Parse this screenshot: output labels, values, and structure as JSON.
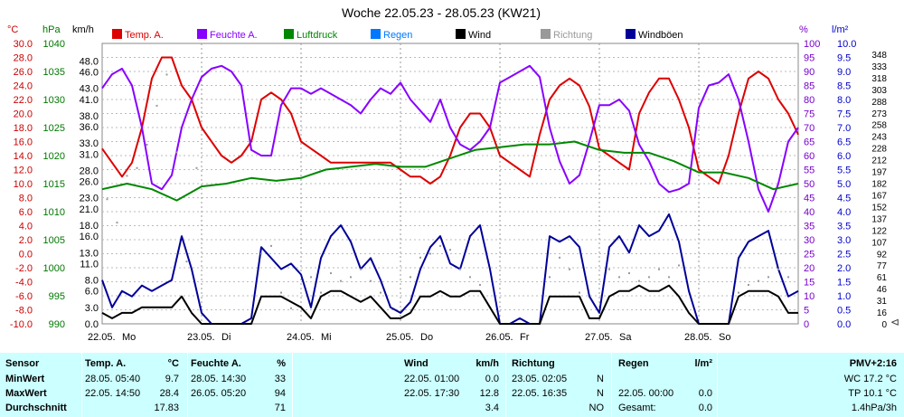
{
  "chart_data": {
    "type": "line",
    "title": "Woche 22.05.23 - 28.05.23 (KW21)",
    "axes": {
      "temp": {
        "unit": "°C",
        "range": [
          -10,
          30
        ],
        "ticks": [
          "30.0",
          "28.0",
          "26.0",
          "24.0",
          "22.0",
          "20.0",
          "18.0",
          "16.0",
          "14.0",
          "12.0",
          "10.0",
          "8.0",
          "6.0",
          "4.0",
          "2.0",
          "0.0",
          "-2.0",
          "-4.0",
          "-6.0",
          "-8.0",
          "-10.0"
        ],
        "color": "#cc0000"
      },
      "pressure": {
        "unit": "hPa",
        "range": [
          990,
          1040
        ],
        "ticks": [
          "1040",
          "1035",
          "1030",
          "1025",
          "1020",
          "1015",
          "1010",
          "1005",
          "1000",
          "995",
          "990"
        ],
        "color": "#007700"
      },
      "wind": {
        "unit": "km/h",
        "range": [
          0,
          51.2
        ],
        "ticks": [
          "48.0",
          "46.0",
          "43.0",
          "41.0",
          "38.0",
          "36.0",
          "33.0",
          "31.0",
          "28.0",
          "26.0",
          "23.0",
          "21.0",
          "18.0",
          "16.0",
          "13.0",
          "11.0",
          "8.0",
          "6.0",
          "3.0",
          "0.0"
        ]
      },
      "humidity": {
        "unit": "%",
        "range": [
          0,
          100
        ],
        "ticks": [
          "100",
          "95",
          "90",
          "85",
          "80",
          "75",
          "70",
          "65",
          "60",
          "55",
          "50",
          "45",
          "40",
          "35",
          "30",
          "25",
          "20",
          "15",
          "10",
          "5",
          "0"
        ],
        "color": "#7700cc"
      },
      "rain": {
        "unit": "l/m²",
        "range": [
          0,
          10
        ],
        "ticks": [
          "10.0",
          "9.5",
          "9.0",
          "8.5",
          "8.0",
          "7.5",
          "7.0",
          "6.5",
          "6.0",
          "5.5",
          "5.0",
          "4.5",
          "4.0",
          "3.5",
          "3.0",
          "2.5",
          "2.0",
          "1.5",
          "1.0",
          "0.5",
          "0.0"
        ],
        "color": "#0000cc"
      },
      "direction": {
        "unit": "°",
        "range": [
          0,
          360
        ],
        "ticks": [
          "348",
          "333",
          "318",
          "303",
          "288",
          "273",
          "258",
          "243",
          "228",
          "212",
          "197",
          "182",
          "167",
          "152",
          "137",
          "122",
          "107",
          "92",
          "77",
          "61",
          "46",
          "31",
          "16",
          "0"
        ]
      }
    },
    "x_labels": [
      "22.05. Mo",
      "23.05. Di",
      "24.05. Mi",
      "25.05. Do",
      "26.05. Fr",
      "27.05. Sa",
      "28.05. So"
    ],
    "x_range": [
      0,
      7
    ],
    "legend": [
      {
        "label": "Temp. A.",
        "color": "#dd0000"
      },
      {
        "label": "Feuchte A.",
        "color": "#8800ff"
      },
      {
        "label": "Luftdruck",
        "color": "#008800"
      },
      {
        "label": "Regen",
        "color": "#0077ff"
      },
      {
        "label": "Wind",
        "color": "#000000"
      },
      {
        "label": "Richtung",
        "color": "#999999"
      },
      {
        "label": "Windböen",
        "color": "#000099"
      }
    ],
    "series": [
      {
        "name": "Temp. A.",
        "axis": "temp",
        "color": "#dd0000",
        "x": [
          0,
          0.1,
          0.2,
          0.3,
          0.4,
          0.5,
          0.6,
          0.7,
          0.8,
          0.9,
          1.0,
          1.1,
          1.2,
          1.3,
          1.4,
          1.5,
          1.6,
          1.7,
          1.8,
          1.9,
          2.0,
          2.1,
          2.2,
          2.3,
          2.4,
          2.5,
          2.6,
          2.7,
          2.8,
          2.9,
          3.0,
          3.1,
          3.2,
          3.3,
          3.4,
          3.5,
          3.6,
          3.7,
          3.8,
          3.9,
          4.0,
          4.1,
          4.2,
          4.3,
          4.4,
          4.5,
          4.6,
          4.7,
          4.8,
          4.9,
          5.0,
          5.1,
          5.2,
          5.3,
          5.4,
          5.5,
          5.6,
          5.7,
          5.8,
          5.9,
          6.0,
          6.1,
          6.2,
          6.3,
          6.4,
          6.5,
          6.6,
          6.7,
          6.8,
          6.9,
          7.0
        ],
        "values": [
          15,
          13,
          11,
          13,
          18,
          25,
          28,
          28,
          24,
          22,
          18,
          16,
          14,
          13,
          14,
          16,
          22,
          23,
          22,
          20,
          16,
          15,
          14,
          13,
          13,
          13,
          13,
          13,
          13,
          13,
          12,
          11,
          11,
          10,
          11,
          14,
          18,
          20,
          20,
          18,
          14,
          13,
          12,
          11,
          17,
          22,
          24,
          25,
          24,
          21,
          15,
          14,
          13,
          12,
          20,
          23,
          25,
          25,
          22,
          18,
          12,
          11,
          10,
          14,
          20,
          25,
          26,
          25,
          22,
          20,
          17
        ]
      },
      {
        "name": "Feuchte A.",
        "axis": "humidity",
        "color": "#8800ff",
        "x": [
          0,
          0.1,
          0.2,
          0.3,
          0.4,
          0.5,
          0.6,
          0.7,
          0.8,
          0.9,
          1.0,
          1.1,
          1.2,
          1.3,
          1.4,
          1.5,
          1.6,
          1.7,
          1.8,
          1.9,
          2.0,
          2.1,
          2.2,
          2.3,
          2.4,
          2.5,
          2.6,
          2.7,
          2.8,
          2.9,
          3.0,
          3.1,
          3.2,
          3.3,
          3.4,
          3.5,
          3.6,
          3.7,
          3.8,
          3.9,
          4.0,
          4.1,
          4.2,
          4.3,
          4.4,
          4.5,
          4.6,
          4.7,
          4.8,
          4.9,
          5.0,
          5.1,
          5.2,
          5.3,
          5.4,
          5.5,
          5.6,
          5.7,
          5.8,
          5.9,
          6.0,
          6.1,
          6.2,
          6.3,
          6.4,
          6.5,
          6.6,
          6.7,
          6.8,
          6.9,
          7.0
        ],
        "values": [
          84,
          89,
          91,
          85,
          70,
          50,
          48,
          53,
          70,
          80,
          88,
          91,
          92,
          90,
          85,
          62,
          60,
          60,
          78,
          84,
          84,
          82,
          84,
          82,
          80,
          78,
          75,
          80,
          84,
          82,
          86,
          80,
          76,
          72,
          80,
          70,
          64,
          62,
          65,
          70,
          86,
          88,
          90,
          92,
          88,
          70,
          58,
          50,
          53,
          65,
          78,
          78,
          80,
          76,
          64,
          58,
          50,
          47,
          48,
          50,
          77,
          85,
          86,
          89,
          80,
          65,
          48,
          40,
          50,
          65,
          70
        ]
      },
      {
        "name": "Luftdruck",
        "axis": "pressure",
        "color": "#008800",
        "x": [
          0,
          0.25,
          0.5,
          0.75,
          1.0,
          1.25,
          1.5,
          1.75,
          2.0,
          2.25,
          2.5,
          2.75,
          3.0,
          3.25,
          3.5,
          3.75,
          4.0,
          4.25,
          4.5,
          4.75,
          5.0,
          5.25,
          5.5,
          5.75,
          6.0,
          6.25,
          6.5,
          6.75,
          7.0
        ],
        "values": [
          1014,
          1015,
          1014,
          1012,
          1014.5,
          1015,
          1016,
          1015.5,
          1016,
          1017.5,
          1018,
          1018.5,
          1018,
          1018,
          1019.5,
          1021,
          1021.5,
          1022,
          1022,
          1022.5,
          1021,
          1020.5,
          1020.5,
          1019,
          1017,
          1017,
          1016,
          1014,
          1015
        ]
      },
      {
        "name": "Windböen",
        "axis": "wind",
        "color": "#000099",
        "x": [
          0,
          0.1,
          0.2,
          0.3,
          0.4,
          0.5,
          0.6,
          0.7,
          0.8,
          0.9,
          1.0,
          1.1,
          1.2,
          1.3,
          1.4,
          1.5,
          1.6,
          1.7,
          1.8,
          1.9,
          2.0,
          2.1,
          2.2,
          2.3,
          2.4,
          2.5,
          2.6,
          2.7,
          2.8,
          2.9,
          3.0,
          3.1,
          3.2,
          3.3,
          3.4,
          3.5,
          3.6,
          3.7,
          3.8,
          3.9,
          4.0,
          4.1,
          4.2,
          4.3,
          4.4,
          4.5,
          4.6,
          4.7,
          4.8,
          4.9,
          5.0,
          5.1,
          5.2,
          5.3,
          5.4,
          5.5,
          5.6,
          5.7,
          5.8,
          5.9,
          6.0,
          6.1,
          6.2,
          6.3,
          6.4,
          6.5,
          6.6,
          6.7,
          6.8,
          6.9,
          7.0
        ],
        "values": [
          8,
          3,
          6,
          5,
          7,
          6,
          7,
          8,
          16,
          10,
          2,
          0,
          0,
          0,
          0,
          1,
          14,
          12,
          10,
          11,
          9,
          3,
          12,
          16,
          18,
          15,
          10,
          12,
          8,
          3,
          2,
          4,
          10,
          14,
          16,
          11,
          10,
          16,
          18,
          10,
          0,
          0,
          1,
          0,
          0,
          16,
          15,
          16,
          14,
          5,
          2,
          14,
          16,
          13,
          18,
          16,
          17,
          20,
          15,
          6,
          0,
          0,
          0,
          0,
          12,
          15,
          16,
          17,
          10,
          5,
          6
        ]
      },
      {
        "name": "Wind",
        "axis": "wind",
        "color": "#000000",
        "x": [
          0,
          0.1,
          0.2,
          0.3,
          0.4,
          0.5,
          0.6,
          0.7,
          0.8,
          0.9,
          1.0,
          1.1,
          1.2,
          1.3,
          1.4,
          1.5,
          1.6,
          1.7,
          1.8,
          1.9,
          2.0,
          2.1,
          2.2,
          2.3,
          2.4,
          2.5,
          2.6,
          2.7,
          2.8,
          2.9,
          3.0,
          3.1,
          3.2,
          3.3,
          3.4,
          3.5,
          3.6,
          3.7,
          3.8,
          3.9,
          4.0,
          4.1,
          4.2,
          4.3,
          4.4,
          4.5,
          4.6,
          4.7,
          4.8,
          4.9,
          5.0,
          5.1,
          5.2,
          5.3,
          5.4,
          5.5,
          5.6,
          5.7,
          5.8,
          5.9,
          6.0,
          6.1,
          6.2,
          6.3,
          6.4,
          6.5,
          6.6,
          6.7,
          6.8,
          6.9,
          7.0
        ],
        "values": [
          2,
          1,
          2,
          2,
          3,
          3,
          3,
          3,
          5,
          2,
          0,
          0,
          0,
          0,
          0,
          0,
          5,
          5,
          5,
          4,
          3,
          1,
          5,
          6,
          6,
          5,
          4,
          5,
          3,
          1,
          1,
          2,
          5,
          5,
          6,
          5,
          5,
          6,
          6,
          3,
          0,
          0,
          0,
          0,
          0,
          5,
          5,
          5,
          5,
          1,
          1,
          5,
          6,
          6,
          7,
          6,
          6,
          7,
          5,
          2,
          0,
          0,
          0,
          0,
          5,
          6,
          6,
          6,
          5,
          2,
          2
        ]
      },
      {
        "name": "Richtung",
        "axis": "direction",
        "color": "#999999",
        "x": [
          0.05,
          0.15,
          0.25,
          0.35,
          0.45,
          0.55,
          0.65,
          0.75,
          0.85,
          0.95,
          1.6,
          1.7,
          1.8,
          1.9,
          2.1,
          2.2,
          2.3,
          2.4,
          2.5,
          2.6,
          2.7,
          2.8,
          3.1,
          3.2,
          3.3,
          3.4,
          3.5,
          3.6,
          3.7,
          3.8,
          4.5,
          4.6,
          4.7,
          4.8,
          5.1,
          5.2,
          5.3,
          5.4,
          5.5,
          5.6,
          5.7,
          5.8,
          6.4,
          6.5,
          6.6,
          6.7,
          6.8,
          6.9
        ],
        "values": [
          160,
          130,
          190,
          200,
          230,
          280,
          320,
          220,
          80,
          200,
          90,
          100,
          40,
          20,
          60,
          40,
          65,
          55,
          60,
          70,
          55,
          40,
          60,
          85,
          90,
          100,
          95,
          70,
          60,
          50,
          60,
          85,
          70,
          40,
          70,
          60,
          65,
          55,
          60,
          70,
          60,
          75,
          40,
          50,
          55,
          60,
          70,
          60
        ]
      }
    ]
  },
  "table": {
    "headers": {
      "sensor": "Sensor",
      "temp": "Temp. A.",
      "temp_unit": "°C",
      "hum": "Feuchte A.",
      "hum_unit": "%",
      "wind": "Wind",
      "wind_unit": "km/h",
      "dir": "Richtung",
      "rain": "Regen",
      "rain_unit": "l/m²",
      "pmv": "PMV+2:16"
    },
    "rows": [
      {
        "label": "MinWert",
        "temp_time": "28.05.  05:40",
        "temp_val": "9.7",
        "hum_time": "28.05.  14:30",
        "hum_val": "33",
        "wind_time": "22.05.  01:00",
        "wind_val": "0.0",
        "dir_time": "23.05.  02:05",
        "dir_val": "N",
        "rain_time": "",
        "rain_val": "",
        "extra": "WC 17.2 °C"
      },
      {
        "label": "MaxWert",
        "temp_time": "22.05.  14:50",
        "temp_val": "28.4",
        "hum_time": "26.05.  05:20",
        "hum_val": "94",
        "wind_time": "22.05.  17:30",
        "wind_val": "12.8",
        "dir_time": "22.05.  16:35",
        "dir_val": "N",
        "rain_time": "22.05.  00:00",
        "rain_val": "0.0",
        "extra": "TP 10.1 °C"
      },
      {
        "label": "Durchschnitt",
        "temp_time": "",
        "temp_val": "17.83",
        "hum_time": "",
        "hum_val": "71",
        "wind_time": "",
        "wind_val": "3.4",
        "dir_time": "",
        "dir_val": "NO",
        "rain_time": "Gesamt:",
        "rain_val": "0.0",
        "extra": "1.4hPa/3h"
      }
    ]
  }
}
